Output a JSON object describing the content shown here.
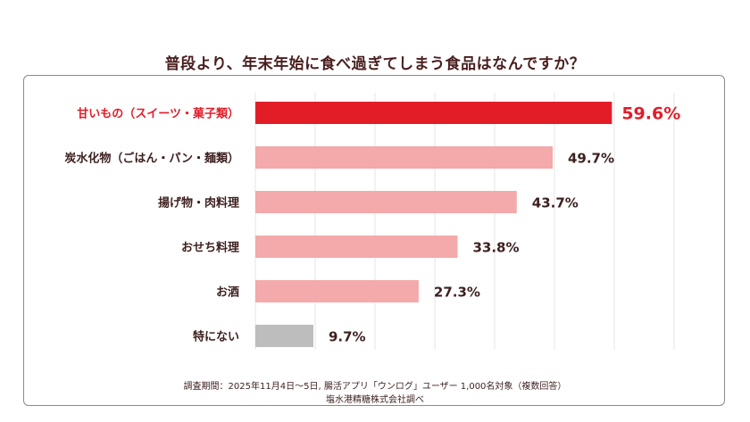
{
  "chart_data": {
    "type": "bar",
    "orientation": "horizontal",
    "title": "普段より、年末年始に食べ過ぎてしまう食品はなんですか？",
    "categories": [
      "甘いもの（スイーツ・菓子類）",
      "炭水化物（ごはん・パン・麺類）",
      "揚げ物・肉料理",
      "おせち料理",
      "お酒",
      "特にない"
    ],
    "values": [
      59.6,
      49.7,
      43.7,
      33.8,
      27.3,
      9.7
    ],
    "value_labels": [
      "59.6%",
      "49.7%",
      "43.7%",
      "33.8%",
      "27.3%",
      "9.7%"
    ],
    "colors": [
      "#e21d28",
      "#f4a9aa",
      "#f4a9aa",
      "#f4a9aa",
      "#f4a9aa",
      "#bdbdbd"
    ],
    "label_colors": [
      "#e21d28",
      "#3d1f1f",
      "#3d1f1f",
      "#3d1f1f",
      "#3d1f1f",
      "#3d1f1f"
    ],
    "highlight_index": 0,
    "xlim": [
      0,
      70
    ],
    "grid": true,
    "unit": "%"
  },
  "footnote": {
    "survey": "調査期間：2025年11月4日〜5日, 腸活アプリ「ウンログ」ユーザー 1,000名対象（複数回答）",
    "source": "塩水港精糖株式会社調べ"
  }
}
